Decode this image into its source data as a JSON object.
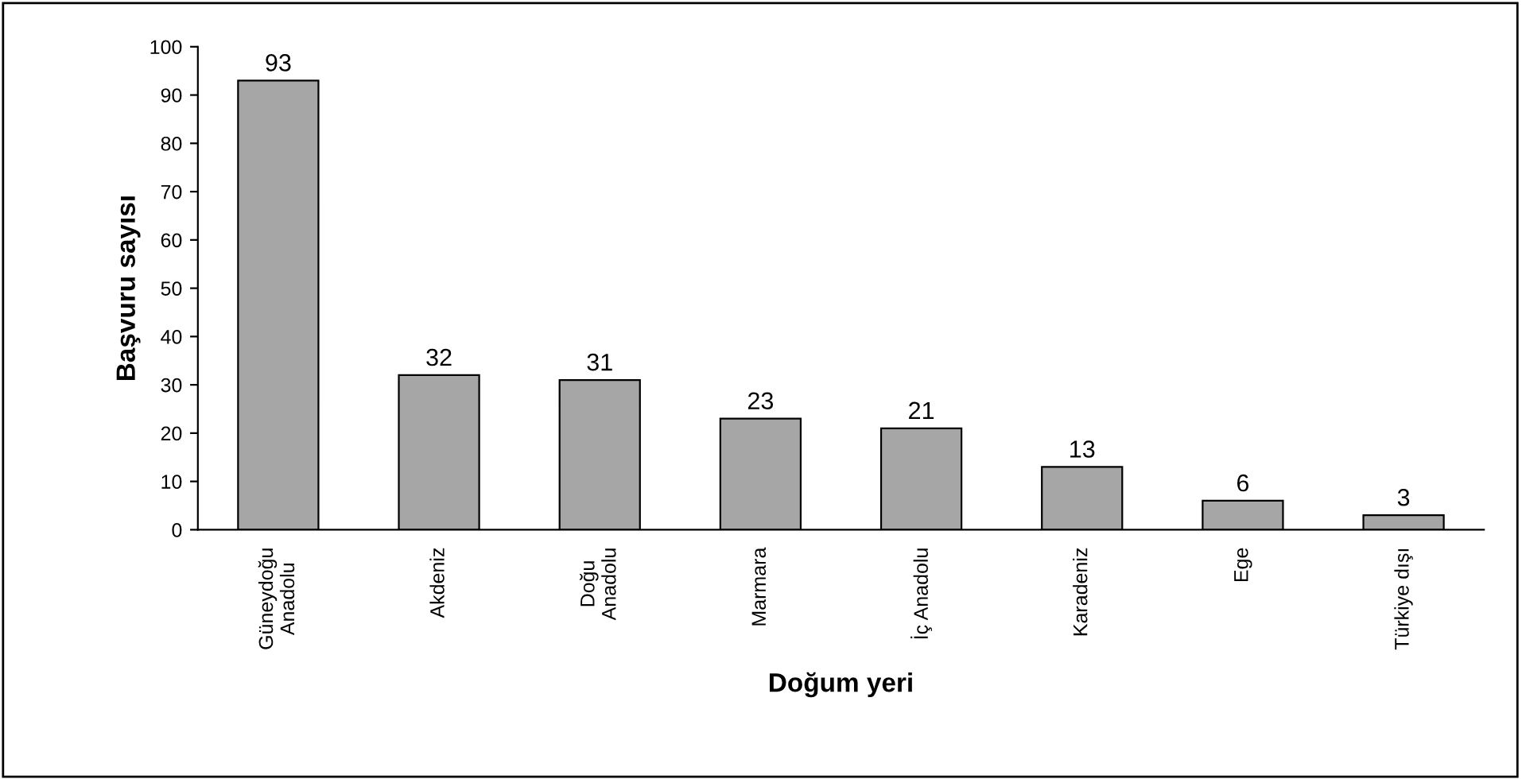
{
  "chart_data": {
    "type": "bar",
    "xlabel": "Doğum yeri",
    "ylabel": "Başvuru sayısı",
    "categories": [
      "Güneydoğu\nAnadolu",
      "Akdeniz",
      "Doğu\nAnadolu",
      "Marmara",
      "İç Anadolu",
      "Karadeniz",
      "Ege",
      "Türkiye dışı"
    ],
    "values": [
      93,
      32,
      31,
      23,
      21,
      13,
      6,
      3
    ],
    "color": "#a6a6a6",
    "ylim": [
      0,
      100
    ],
    "yticks": [
      0,
      10,
      20,
      30,
      40,
      50,
      60,
      70,
      80,
      90,
      100
    ],
    "data_labels": true,
    "grid": false,
    "legend": false
  }
}
